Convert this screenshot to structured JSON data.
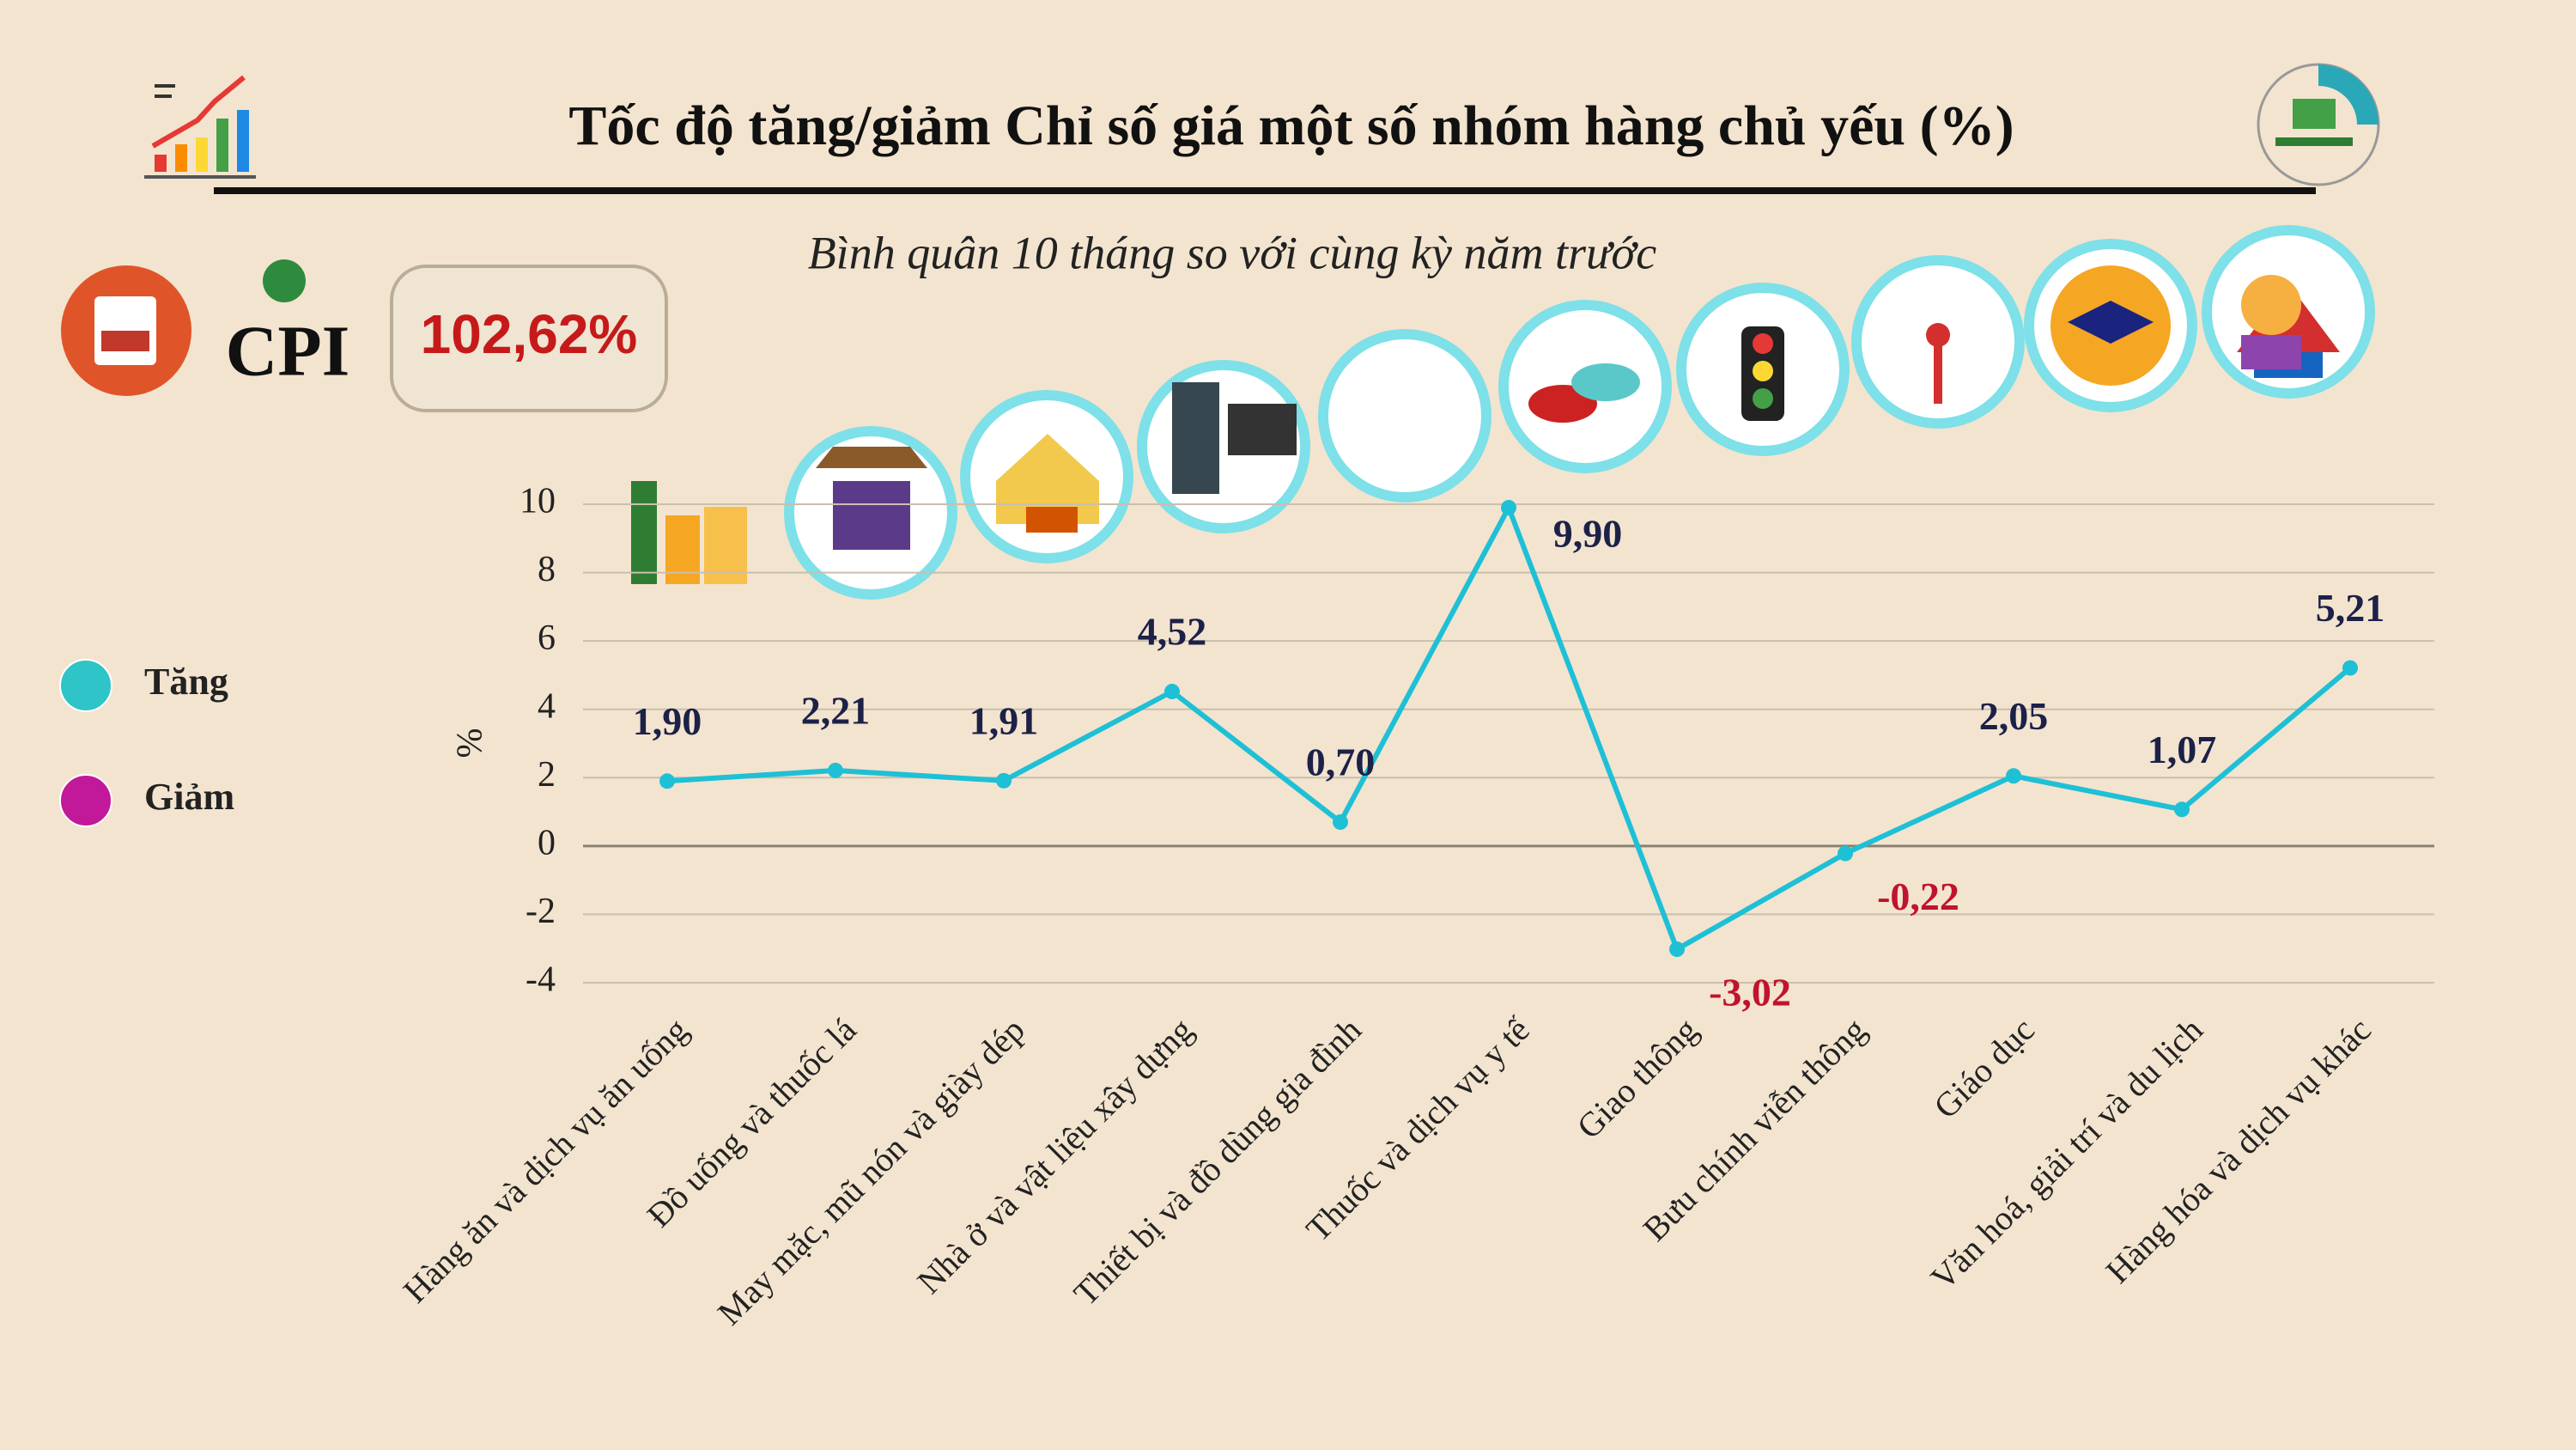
{
  "chart_data": {
    "type": "line",
    "title": "Tốc độ tăng/giảm Chỉ số giá một số nhóm hàng chủ yếu (%)",
    "subtitle": "Bình quân 10 tháng so với cùng kỳ năm trước",
    "cpi_label": "CPI",
    "cpi_value": "102,62%",
    "ylabel": "%",
    "legend": [
      {
        "label": "Tăng",
        "color": "#2ec4c8"
      },
      {
        "label": "Giảm",
        "color": "#c2189a"
      }
    ],
    "categories": [
      "Hàng ăn và dịch vụ ăn uống",
      "Đồ uống và thuốc lá",
      "May mặc, mũ nón và giày dép",
      "Nhà ở và vật liệu xây dựng",
      "Thiết bị và đồ dùng gia đình",
      "Thuốc và dịch vụ y tế",
      "Giao thông",
      "Bưu chính viễn thông",
      "Giáo dục",
      "Văn hoá, giải trí và du lịch",
      "Hàng hóa và dịch vụ khác"
    ],
    "series": [
      {
        "name": "Tốc độ tăng/giảm",
        "color": "#1ec0d6",
        "values": [
          1.9,
          2.21,
          1.91,
          4.52,
          0.7,
          9.9,
          -3.02,
          -0.22,
          2.05,
          1.07,
          5.21
        ],
        "value_labels": [
          "1,90",
          "2,21",
          "1,91",
          "4,52",
          "0,70",
          "9,90",
          "-3,02",
          "-0,22",
          "2,05",
          "1,07",
          "5,21"
        ]
      }
    ],
    "label_color": "#1c2148",
    "negative_label_color": "#c0132e",
    "ylim": [
      -4,
      10
    ],
    "yticks": [
      -4,
      -2,
      0,
      2,
      4,
      6,
      8,
      10
    ],
    "grid": true
  }
}
